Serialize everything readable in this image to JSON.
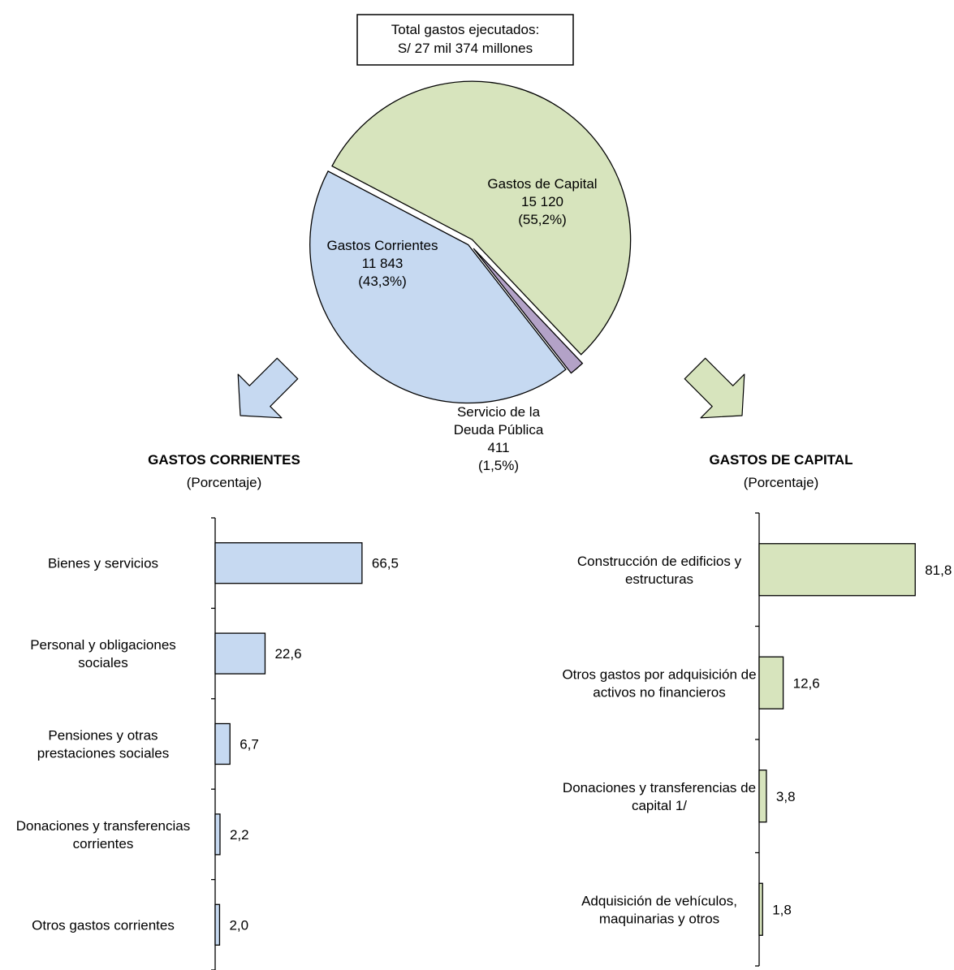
{
  "header_box": {
    "line1": "Total gastos ejecutados:",
    "line2": "S/ 27 mil 374 millones"
  },
  "colors": {
    "corrientes_fill": "#c6d9f1",
    "capital_fill": "#d7e4bd",
    "deuda_fill": "#b3a2c7",
    "outline": "#000000"
  },
  "chart_data": [
    {
      "type": "pie",
      "slices": [
        {
          "label_lines": [
            "Gastos de Capital",
            "15 120",
            "(55,2%)"
          ],
          "value": 15120,
          "percent": 55.2,
          "color": "#d7e4bd"
        },
        {
          "label_lines": [
            "Servicio de la",
            "Deuda Pública",
            "411",
            "(1,5%)"
          ],
          "value": 411,
          "percent": 1.5,
          "color": "#b3a2c7"
        },
        {
          "label_lines": [
            "Gastos Corrientes",
            "11 843",
            "(43,3%)"
          ],
          "value": 11843,
          "percent": 43.3,
          "color": "#c6d9f1"
        }
      ]
    },
    {
      "type": "bar",
      "orientation": "horizontal",
      "title": "GASTOS CORRIENTES",
      "subtitle": "(Porcentaje)",
      "color": "#c6d9f1",
      "xlim": [
        0,
        100
      ],
      "categories": [
        [
          "Bienes y servicios"
        ],
        [
          "Personal y obligaciones",
          "sociales"
        ],
        [
          "Pensiones y otras",
          "prestaciones sociales"
        ],
        [
          "Donaciones y transferencias",
          "corrientes"
        ],
        [
          "Otros gastos corrientes"
        ]
      ],
      "values": [
        66.5,
        22.6,
        6.7,
        2.2,
        2.0
      ],
      "value_labels": [
        "66,5",
        "22,6",
        "6,7",
        "2,2",
        "2,0"
      ]
    },
    {
      "type": "bar",
      "orientation": "horizontal",
      "title": "GASTOS DE CAPITAL",
      "subtitle": "(Porcentaje)",
      "color": "#d7e4bd",
      "xlim": [
        0,
        100
      ],
      "categories": [
        [
          "Construcción de edificios y",
          "estructuras"
        ],
        [
          "Otros gastos por adquisición de",
          "activos no financieros"
        ],
        [
          "Donaciones y transferencias de",
          "capital 1/"
        ],
        [
          "Adquisición de vehículos,",
          "maquinarias y otros"
        ]
      ],
      "values": [
        81.8,
        12.6,
        3.8,
        1.8
      ],
      "value_labels": [
        "81,8",
        "12,6",
        "3,8",
        "1,8"
      ]
    }
  ]
}
